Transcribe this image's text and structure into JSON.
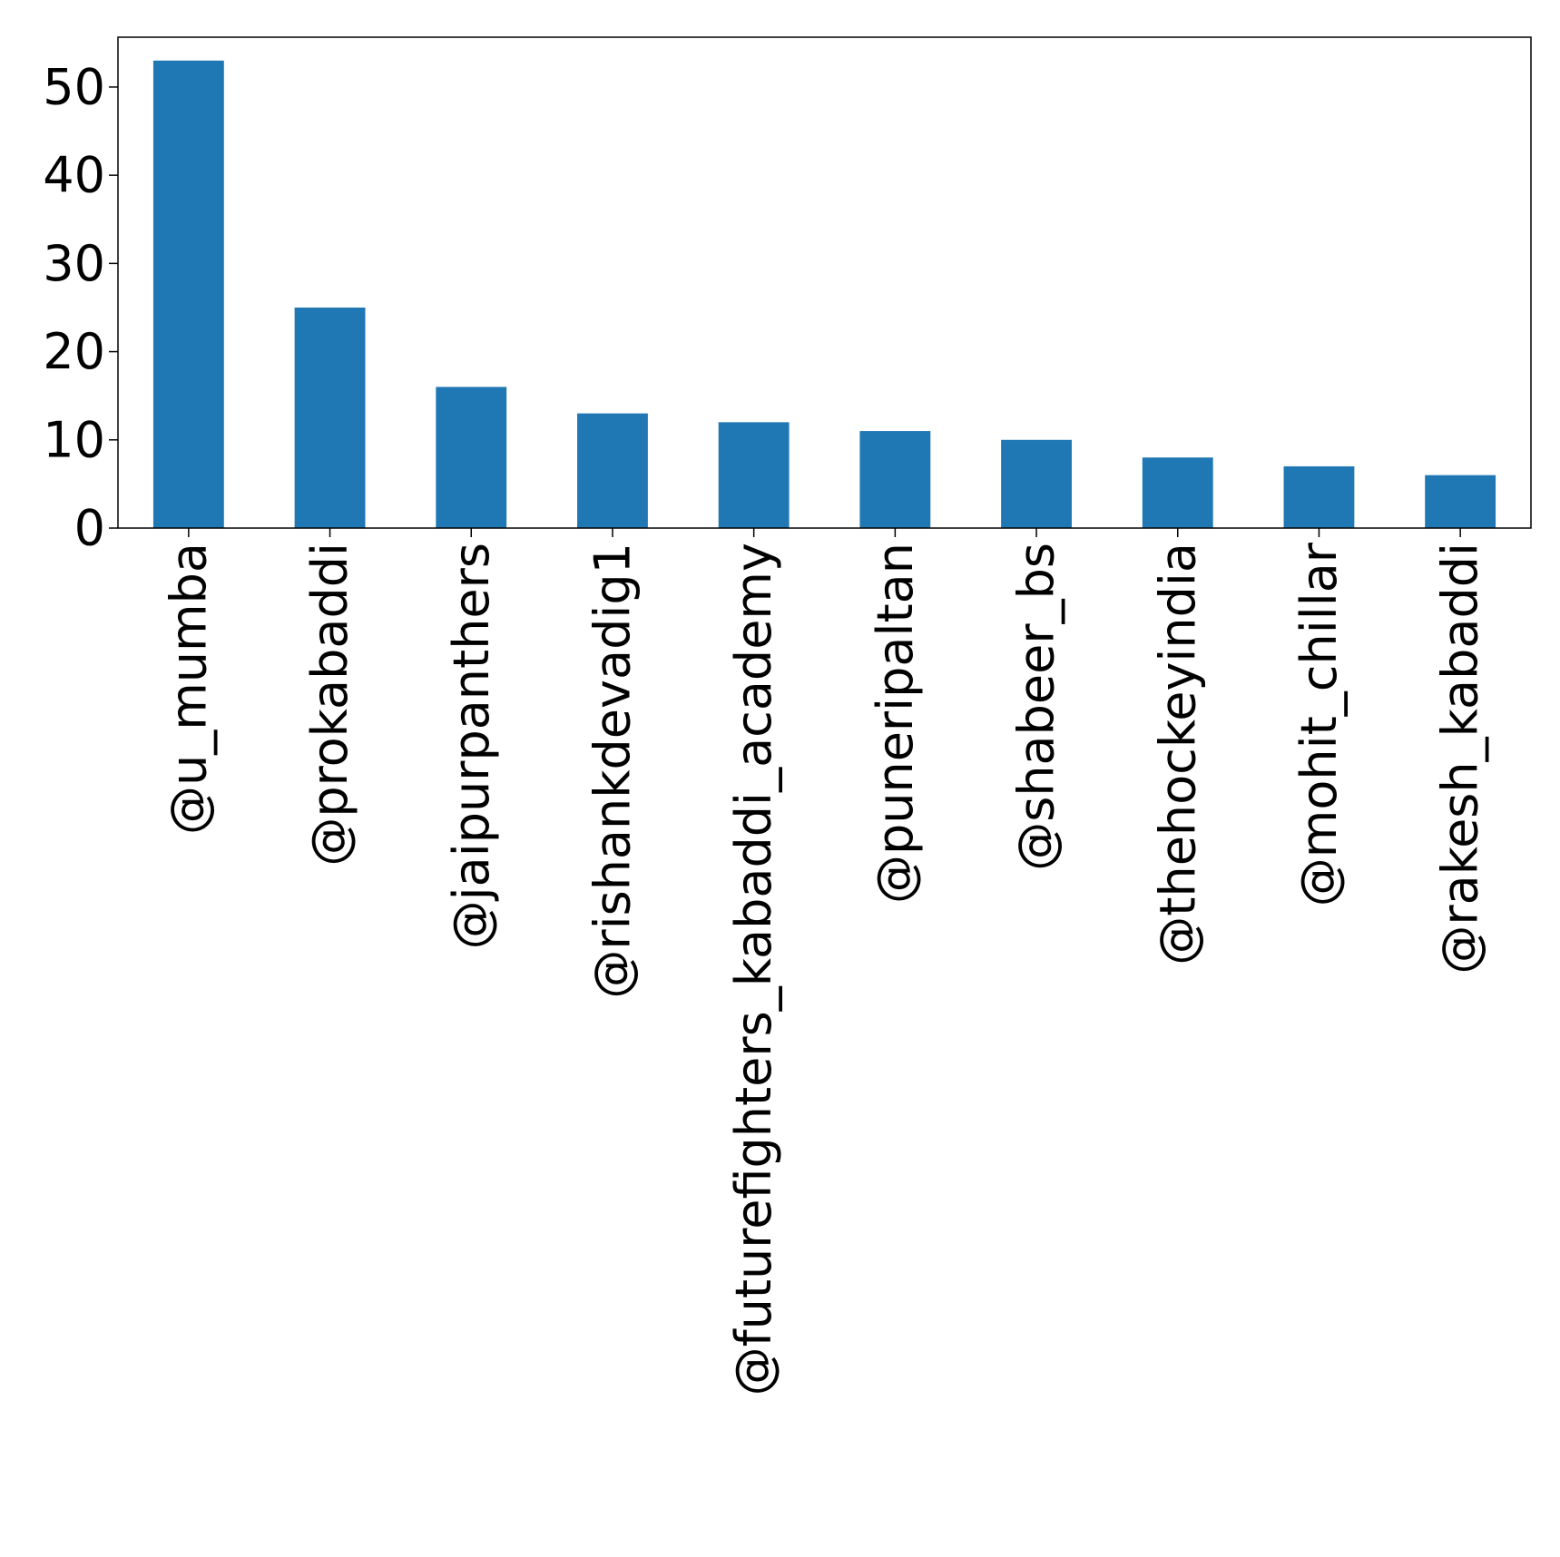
{
  "chart_data": {
    "type": "bar",
    "title": "",
    "xlabel": "",
    "ylabel": "",
    "categories": [
      "@u_mumba",
      "@prokabaddi",
      "@jaipurpanthers",
      "@rishankdevadig1",
      "@futurefighters_kabaddi_academy",
      "@puneripaltan",
      "@shabeer_bs",
      "@thehockeyindia",
      "@mohit_chillar",
      "@rakesh_kabaddi"
    ],
    "values": [
      53,
      25,
      16,
      13,
      12,
      11,
      10,
      8,
      7,
      6
    ],
    "ylim": [
      0,
      55.65
    ],
    "yticks": [
      0,
      10,
      20,
      30,
      40,
      50
    ],
    "bar_color": "#1f77b4",
    "grid": false,
    "legend": "none"
  }
}
